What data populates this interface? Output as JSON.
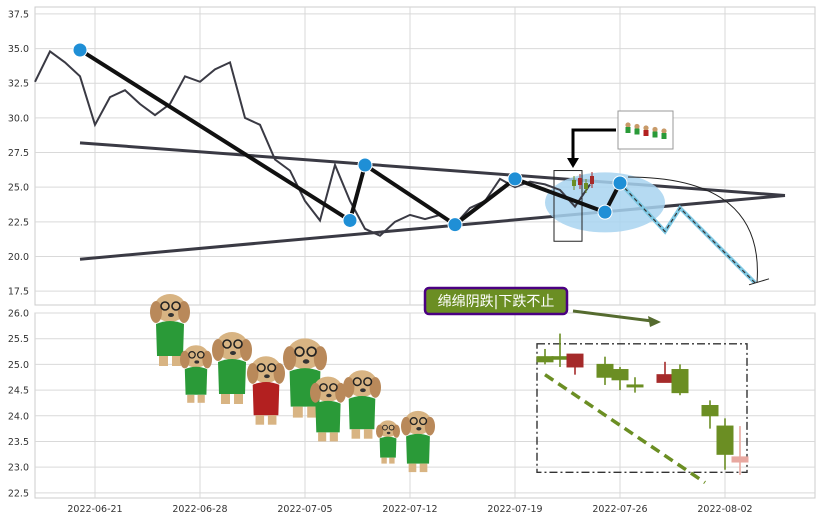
{
  "chart_data": [
    {
      "type": "line",
      "panel": "top",
      "title": "",
      "ylim": [
        16.5,
        38.0
      ],
      "xlim_dates": [
        "2022-06-17",
        "2022-08-08"
      ],
      "yticks": [
        "17.5",
        "20.0",
        "22.5",
        "25.0",
        "27.5",
        "30.0",
        "32.5",
        "35.0",
        "37.5"
      ],
      "series": [
        {
          "name": "",
          "x": [
            "2022-06-17",
            "2022-06-18",
            "2022-06-19",
            "2022-06-20",
            "2022-06-21",
            "2022-06-22",
            "2022-06-23",
            "2022-06-24",
            "2022-06-25",
            "2022-06-26",
            "2022-06-27",
            "2022-06-28",
            "2022-06-29",
            "2022-06-30",
            "2022-07-01",
            "2022-07-02",
            "2022-07-03",
            "2022-07-04",
            "2022-07-05",
            "2022-07-06",
            "2022-07-07",
            "2022-07-08",
            "2022-07-09",
            "2022-07-10",
            "2022-07-11",
            "2022-07-12",
            "2022-07-13",
            "2022-07-14",
            "2022-07-15",
            "2022-07-16",
            "2022-07-17",
            "2022-07-18",
            "2022-07-19",
            "2022-07-20",
            "2022-07-21",
            "2022-07-22",
            "2022-07-23",
            "2022-07-24"
          ],
          "y": [
            32.6,
            34.8,
            34.0,
            33.0,
            29.5,
            31.5,
            32.0,
            31.0,
            30.2,
            31.0,
            33.0,
            32.6,
            33.5,
            34.0,
            30.0,
            29.5,
            27.0,
            26.2,
            24.0,
            22.6,
            26.6,
            24.0,
            22.0,
            21.5,
            22.5,
            23.0,
            22.7,
            23.0,
            22.3,
            23.5,
            24.0,
            25.6,
            25.0,
            25.4,
            25.2,
            24.8,
            23.6,
            25.2
          ]
        }
      ],
      "pivots": [
        {
          "x": "2022-06-20",
          "y": 34.9
        },
        {
          "x": "2022-07-08",
          "y": 22.6
        },
        {
          "x": "2022-07-09",
          "y": 26.6
        },
        {
          "x": "2022-07-15",
          "y": 22.3
        },
        {
          "x": "2022-07-19",
          "y": 25.6
        },
        {
          "x": "2022-07-25",
          "y": 23.2
        },
        {
          "x": "2022-07-26",
          "y": 25.3
        }
      ],
      "trendlines": [
        {
          "from": {
            "x": "2022-06-20",
            "y": 28.2
          },
          "to": {
            "x": "2022-08-06",
            "y": 24.4
          }
        },
        {
          "from": {
            "x": "2022-06-20",
            "y": 19.8
          },
          "to": {
            "x": "2022-08-06",
            "y": 24.4
          }
        }
      ],
      "projection": [
        {
          "x": "2022-07-26",
          "y": 25.3
        },
        {
          "x": "2022-07-29",
          "y": 21.8
        },
        {
          "x": "2022-07-30",
          "y": 23.5
        },
        {
          "x": "2022-08-04",
          "y": 18.1
        }
      ]
    },
    {
      "type": "candlestick",
      "panel": "bottom",
      "title": "",
      "ylim": [
        22.4,
        26.0
      ],
      "yticks": [
        "22.5",
        "23.0",
        "23.5",
        "24.0",
        "24.5",
        "25.0",
        "25.5",
        "26.0"
      ],
      "xticks": [
        "2022-06-21",
        "2022-06-28",
        "2022-07-05",
        "2022-07-12",
        "2022-07-19",
        "2022-07-26",
        "2022-08-02"
      ],
      "candles": [
        {
          "x": "2022-07-21",
          "open": 25.05,
          "close": 25.15,
          "high": 25.3,
          "low": 25.0,
          "color": "#6b8e23"
        },
        {
          "x": "2022-07-22",
          "open": 25.1,
          "close": 25.15,
          "high": 25.6,
          "low": 24.95,
          "color": "#6b8e23"
        },
        {
          "x": "2022-07-23",
          "open": 24.95,
          "close": 25.2,
          "high": 25.2,
          "low": 24.8,
          "color": "#a52a2a"
        },
        {
          "x": "2022-07-25",
          "open": 25.0,
          "close": 24.75,
          "high": 25.15,
          "low": 24.6,
          "color": "#6b8e23"
        },
        {
          "x": "2022-07-26",
          "open": 24.9,
          "close": 24.7,
          "high": 24.95,
          "low": 24.5,
          "color": "#6b8e23"
        },
        {
          "x": "2022-07-27",
          "open": 24.6,
          "close": 24.6,
          "high": 24.75,
          "low": 24.45,
          "color": "#6b8e23"
        },
        {
          "x": "2022-07-29",
          "open": 24.65,
          "close": 24.8,
          "high": 25.05,
          "low": 24.65,
          "color": "#a52a2a"
        },
        {
          "x": "2022-07-30",
          "open": 24.9,
          "close": 24.45,
          "high": 25.0,
          "low": 24.4,
          "color": "#6b8e23"
        },
        {
          "x": "2022-08-01",
          "open": 24.2,
          "close": 24.0,
          "high": 24.3,
          "low": 23.75,
          "color": "#6b8e23"
        },
        {
          "x": "2022-08-02",
          "open": 23.8,
          "close": 23.25,
          "high": 23.95,
          "low": 22.95,
          "color": "#6b8e23"
        },
        {
          "x": "2022-08-03",
          "open": 23.2,
          "close": 23.1,
          "high": 23.8,
          "low": 22.85,
          "color": "#e8a8a0"
        }
      ],
      "trendline": {
        "from": {
          "x": "2022-07-21",
          "y": 24.8
        },
        "to": {
          "x": "2022-07-31",
          "y": 22.7
        }
      },
      "highlight_box": {
        "from": {
          "x": "2022-07-21",
          "y": 25.4
        },
        "to": {
          "x": "2022-08-02",
          "y": 22.9
        }
      }
    }
  ],
  "annotation": {
    "label": "绵绵阴跌|下跌不止",
    "bg_color": "#6b8e23",
    "border_color": "#4b0082"
  },
  "colors": {
    "price_line": "#3a3a44",
    "trendline": "#3a3a44",
    "pivot": "#1f8fd6",
    "zigzag": "#111111",
    "ellipse": "#a8d4f0",
    "up": "#a52a2a",
    "down": "#6b8e23",
    "dash": "#6b8e23"
  }
}
